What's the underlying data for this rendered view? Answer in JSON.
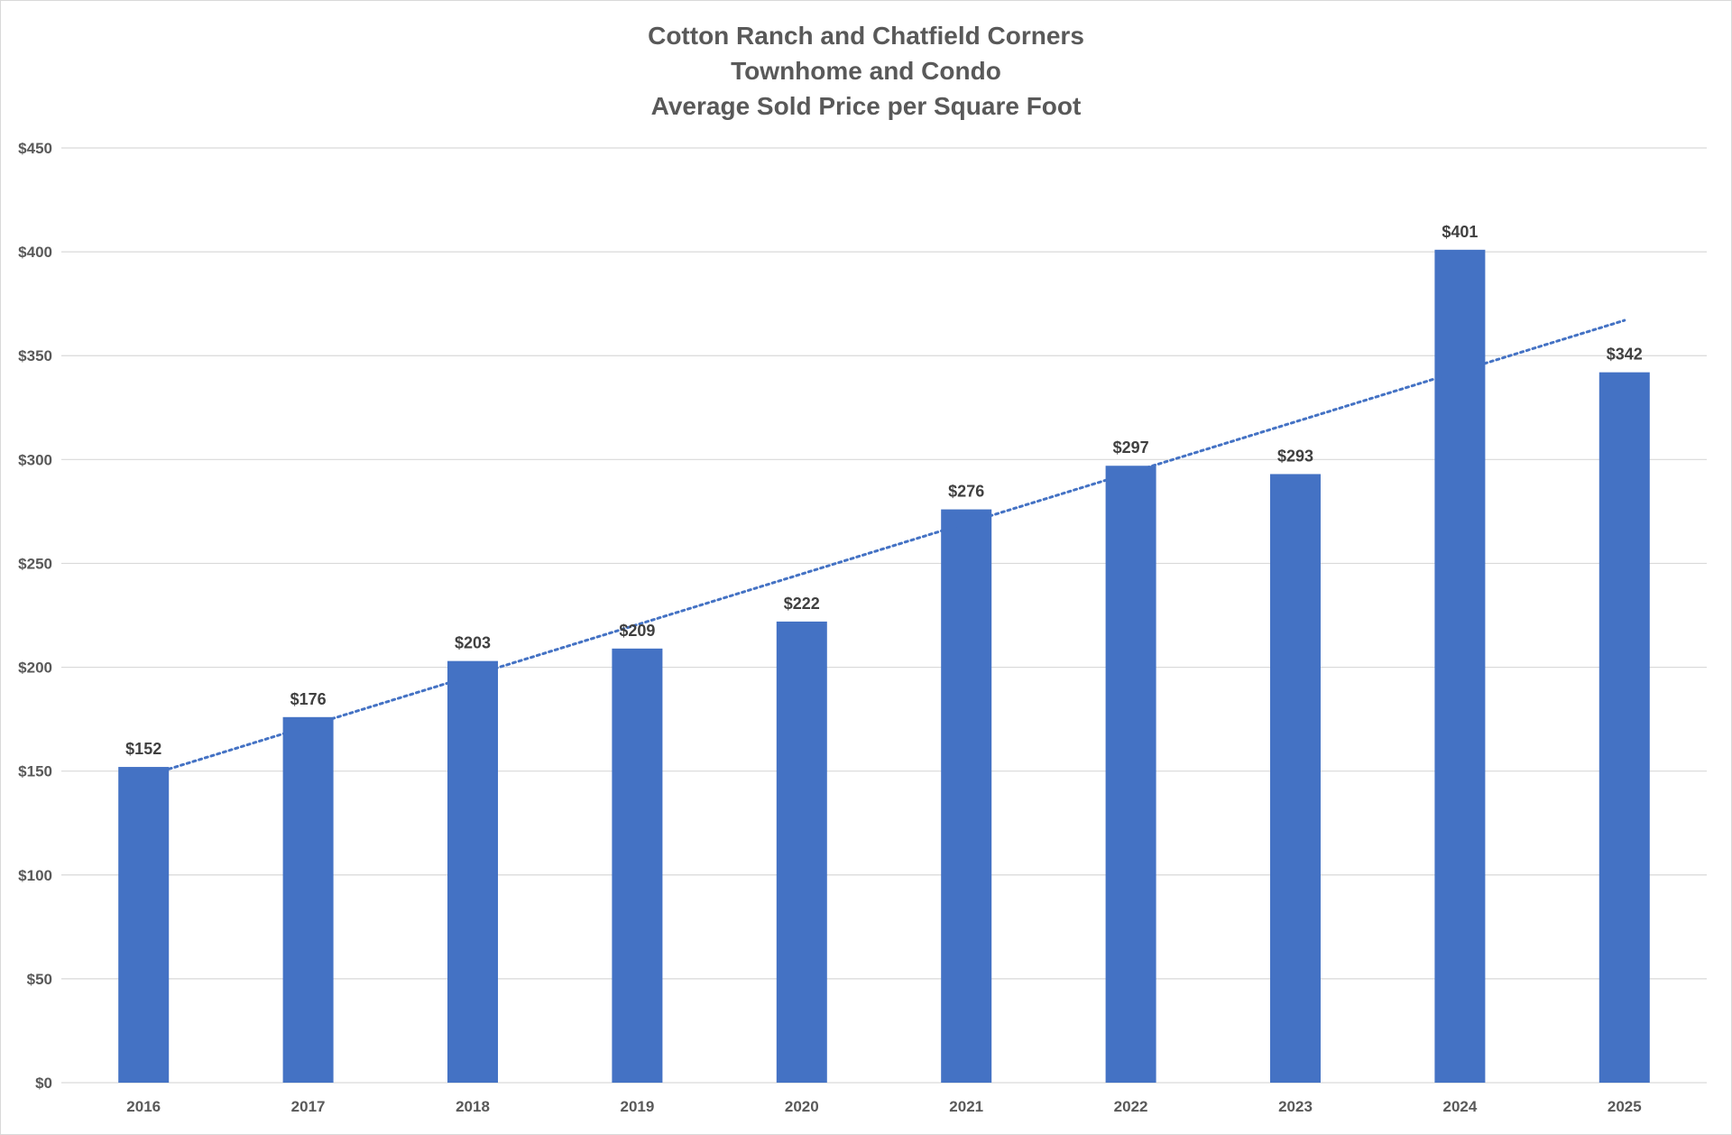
{
  "chart_data": {
    "type": "bar",
    "title_lines": [
      "Cotton Ranch and Chatfield Corners",
      "Townhome and Condo",
      "Average Sold Price per Square Foot"
    ],
    "xlabel": "",
    "ylabel": "",
    "categories": [
      "2016",
      "2017",
      "2018",
      "2019",
      "2020",
      "2021",
      "2022",
      "2023",
      "2024",
      "2025"
    ],
    "values": [
      152,
      176,
      203,
      209,
      222,
      276,
      297,
      293,
      401,
      342
    ],
    "data_labels": [
      "$152",
      "$176",
      "$203",
      "$209",
      "$222",
      "$276",
      "$297",
      "$293",
      "$401",
      "$342"
    ],
    "ylim": [
      0,
      450
    ],
    "y_ticks": [
      0,
      50,
      100,
      150,
      200,
      250,
      300,
      350,
      400,
      450
    ],
    "y_tick_labels": [
      "$0",
      "$50",
      "$100",
      "$150",
      "$200",
      "$250",
      "$300",
      "$350",
      "$400",
      "$450"
    ],
    "grid": true,
    "legend": "none",
    "trendline": {
      "type": "linear",
      "style": "dotted",
      "start_value": 151,
      "end_value": 367
    },
    "colors": {
      "bar": "#4472C4",
      "trendline": "#4472C4",
      "gridline": "#d9d9d9",
      "axis_text": "#595959",
      "label_text": "#404040",
      "title_text": "#595959"
    }
  }
}
